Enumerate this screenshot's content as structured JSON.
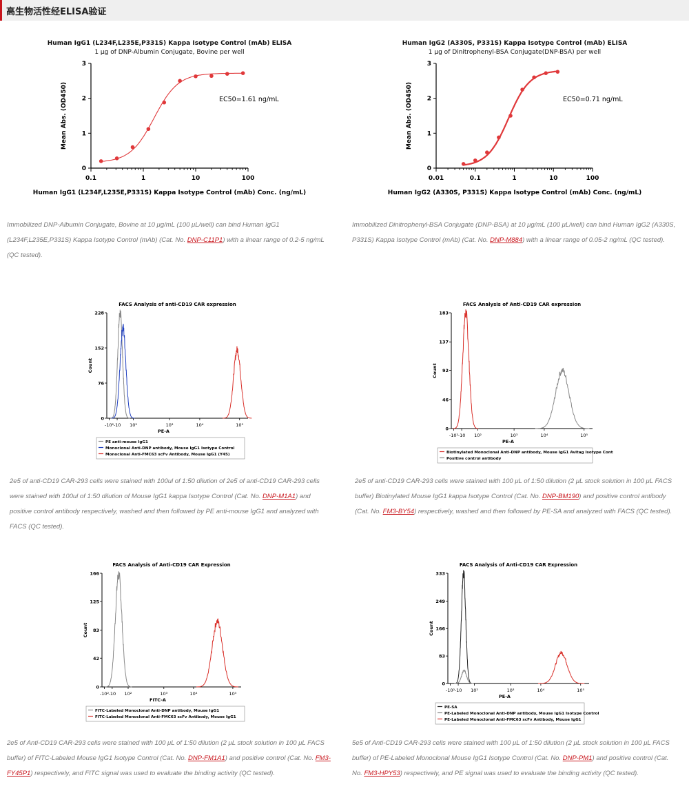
{
  "header": {
    "title": "高生物活性经ELISA验证"
  },
  "elisa1": {
    "title": "Human IgG1 (L234F,L235E,P331S) Kappa Isotype Control (mAb) ELISA",
    "subtitle": "1 μg of DNP-Albumin Conjugate, Bovine per well",
    "annotation": "EC50=1.61 ng/mL",
    "caption": {
      "p1": "Immobilized DNP-Albumin Conjugate, Bovine at 10 μg/mL (100 μL/well) can bind Human IgG1 (L234F,L235E,P331S) Kappa Isotype Control (mAb) (Cat. No. ",
      "link1": "DNP-C11P1",
      "p2": ") with a linear range of 0.2-5 ng/mL (QC tested)."
    }
  },
  "elisa2": {
    "title": "Human IgG2 (A330S, P331S) Kappa Isotype Control (mAb) ELISA",
    "subtitle": "1 μg of Dinitrophenyl-BSA Conjugate(DNP-BSA) per well",
    "annotation": "EC50=0.71 ng/mL",
    "caption": {
      "p1": "Immobilized Dinitrophenyl-BSA Conjugate (DNP-BSA) at 10 μg/mL (100 μL/well) can bind Human IgG2 (A330S, P331S) Kappa Isotype Control (mAb) (Cat. No. ",
      "link1": "DNP-M884",
      "p2": ") with a linear range of 0.05-2 ng/mL (QC tested)."
    }
  },
  "facs1": {
    "caption": {
      "p1": "2e5 of anti-CD19 CAR-293 cells were stained with 100ul of 1:50 dilution of 2e5 of anti-CD19 CAR-293 cells were stained with 100ul of 1:50 dilution of Mouse IgG1 kappa Isotype Control (Cat. No. ",
      "link1": "DNP-M1A1",
      "p2": ") and positive control antibody respectively, washed and then followed by PE anti-mouse IgG1 and analyzed with FACS (QC tested)."
    }
  },
  "facs2": {
    "caption": {
      "p1": "2e5 of anti-CD19 CAR-293 cells were stained with 100 μL of 1:50 dilution (2 μL stock solution in 100 μL FACS buffer) Biotinylated Mouse IgG1 kappa Isotype Control (Cat. No. ",
      "link1": "DNP-BM190",
      "p2": ") and positive control antibody (Cat. No. ",
      "link2": "FM3-BY54",
      "p3": ") respectively, washed and then followed by PE-SA and analyzed with FACS (QC tested)."
    }
  },
  "facs3": {
    "caption": {
      "p1": "2e5 of Anti-CD19 CAR-293 cells were stained with 100 μL of 1:50 dilution (2 μL stock solution in 100 μL FACS buffer) of FITC-Labeled Mouse IgG1 Isotype Control (Cat. No. ",
      "link1": "DNP-FM1A1",
      "p2": ") and positive control (Cat. No. ",
      "link2": "FM3-FY45P1",
      "p3": ") respectively, and FITC signal was used to evaluate the binding activity (QC tested)."
    }
  },
  "facs4": {
    "caption": {
      "p1": "5e5 of Anti-CD19 CAR-293 cells were stained with 100 μL of 1:50 dilution (2 μL stock solution in 100 μL FACS buffer) of PE-Labeled Monoclonal Mouse IgG1 Isotype Control (Cat. No. ",
      "link1": "DNP-PM1",
      "p2": ") and positive control (Cat. No. ",
      "link2": "FM3-HPY53",
      "p3": ") respectively, and PE signal was used to evaluate the binding activity (QC tested)."
    }
  },
  "chart_data": [
    {
      "type": "scatter",
      "title": "Human IgG1 (L234F,L235E,P331S) Kappa Isotype Control (mAb) ELISA",
      "subtitle": "1 μg of DNP-Albumin Conjugate, Bovine per well",
      "xlabel": "Human IgG1 (L234F,L235E,P331S) Kappa Isotype Control (mAb) Conc. (ng/mL)",
      "ylabel": "Mean Abs. (OD450)",
      "xscale": "log",
      "xlim": [
        0.1,
        100
      ],
      "ylim": [
        0,
        3
      ],
      "xticks": [
        "0.1",
        "1",
        "10",
        "100"
      ],
      "yticks": [
        "0",
        "1",
        "2",
        "3"
      ],
      "x": [
        0.156,
        0.3125,
        0.625,
        1.25,
        2.5,
        5,
        10,
        20,
        40,
        80
      ],
      "y": [
        0.2,
        0.28,
        0.6,
        1.12,
        1.88,
        2.5,
        2.63,
        2.64,
        2.7,
        2.72
      ],
      "fit": {
        "bottom": 0.16,
        "top": 2.72,
        "ec50": 1.61,
        "hill": 1.9
      },
      "annotation": "EC50=1.61 ng/mL",
      "color": "#e0383a"
    },
    {
      "type": "scatter",
      "title": "Human IgG2 (A330S, P331S) Kappa Isotype Control (mAb) ELISA",
      "subtitle": "1 μg of Dinitrophenyl-BSA Conjugate(DNP-BSA) per well",
      "xlabel": "Human IgG2 (A330S, P331S) Kappa Isotype Control (mAb) Conc. (ng/mL)",
      "ylabel": "Mean Abs. (OD450)",
      "xscale": "log",
      "xlim": [
        0.01,
        100
      ],
      "ylim": [
        0,
        3
      ],
      "xticks": [
        "0.01",
        "0.1",
        "1",
        "10",
        "100"
      ],
      "yticks": [
        "0",
        "1",
        "2",
        "3"
      ],
      "x": [
        0.05,
        0.1,
        0.2,
        0.4,
        0.8,
        1.6,
        3.2,
        6.4,
        12.8
      ],
      "y": [
        0.12,
        0.22,
        0.45,
        0.88,
        1.5,
        2.25,
        2.6,
        2.72,
        2.76
      ],
      "fit": {
        "bottom": 0.05,
        "top": 2.8,
        "ec50": 0.71,
        "hill": 1.6
      },
      "annotation": "EC50=0.71 ng/mL",
      "color": "#e0383a"
    },
    {
      "type": "area",
      "title": "FACS Analysis of anti-CD19 CAR expression",
      "xlabel": "PE-A",
      "ylabel": "Count",
      "yticks": [
        "0",
        "76",
        "152",
        "228"
      ],
      "ylim": [
        0,
        228
      ],
      "xticks": [
        "-10²",
        "-10",
        "10²",
        "10³",
        "10⁴",
        "10⁵"
      ],
      "series": [
        {
          "name": "PE anti-mouse IgG1",
          "color": "#888888",
          "center": 0.0,
          "width": 0.1,
          "peak": 228
        },
        {
          "name": "Monoclonal Anti-DNP antibody, Mouse IgG1 Isotype Control",
          "color": "#1f3fbf",
          "center": 0.12,
          "width": 0.12,
          "peak": 196
        },
        {
          "name": "Monoclonal Anti-FMC63 scFv Antibody, Mouse IgG1 (Y45)",
          "color": "#d9302a",
          "center": 4.85,
          "width": 0.15,
          "peak": 148
        }
      ]
    },
    {
      "type": "area",
      "title": "FACS Analysis of Anti-CD19 CAR expression",
      "xlabel": "PE-A",
      "ylabel": "Count",
      "yticks": [
        "0",
        "46",
        "92",
        "137",
        "183"
      ],
      "ylim": [
        0,
        183
      ],
      "xticks": [
        "-10²",
        "-10",
        "10²",
        "10³",
        "10⁴",
        "10⁵"
      ],
      "series": [
        {
          "name": "Biotinylated Monoclonal Anti-DNP antibody, Mouse IgG1 Avitag Isotype Control",
          "color": "#d9302a",
          "center": 0.05,
          "width": 0.13,
          "peak": 183
        },
        {
          "name": "Positive control antibody",
          "color": "#888888",
          "center": 4.05,
          "width": 0.28,
          "peak": 92
        }
      ]
    },
    {
      "type": "area",
      "title": "FACS Analysis of Anti-CD19 CAR Expression",
      "xlabel": "FITC-A",
      "ylabel": "Count",
      "yticks": [
        "0",
        "42",
        "83",
        "125",
        "166"
      ],
      "ylim": [
        0,
        166
      ],
      "xticks": [
        "-10²",
        "-10",
        "10²",
        "10³",
        "10⁴",
        "10⁵"
      ],
      "series": [
        {
          "name": "FITC-Labeled Monoclonal Anti-DNP antibody, Mouse IgG1",
          "color": "#888888",
          "center": 0.15,
          "width": 0.14,
          "peak": 164
        },
        {
          "name": "FITC-Labeled Monoclonal Anti-FMC63 scFv Antibody, Mouse IgG1",
          "color": "#d9302a",
          "center": 4.3,
          "width": 0.22,
          "peak": 96
        }
      ]
    },
    {
      "type": "area",
      "title": "FACS Analysis of Anti-CD19 CAR Expression",
      "xlabel": "PE-A",
      "ylabel": "Count",
      "yticks": [
        "0",
        "83",
        "166",
        "249",
        "333"
      ],
      "ylim": [
        0,
        333
      ],
      "xticks": [
        "-10²",
        "-10",
        "10²",
        "10³",
        "10⁴",
        "10⁵"
      ],
      "series": [
        {
          "name": "PE-SA",
          "color": "#222222",
          "center": 0.1,
          "width": 0.09,
          "peak": 333
        },
        {
          "name": "PE-Labeled Monoclonal Anti-DNP antibody, Mouse IgG1 Isotype Control",
          "color": "#888888",
          "center": 0.12,
          "width": 0.1,
          "peak": 40
        },
        {
          "name": "PE-Labeled Monoclonal Anti-FMC63 scFv Antibody, Mouse IgG1",
          "color": "#d9302a",
          "center": 4.15,
          "width": 0.24,
          "peak": 93
        }
      ]
    }
  ]
}
